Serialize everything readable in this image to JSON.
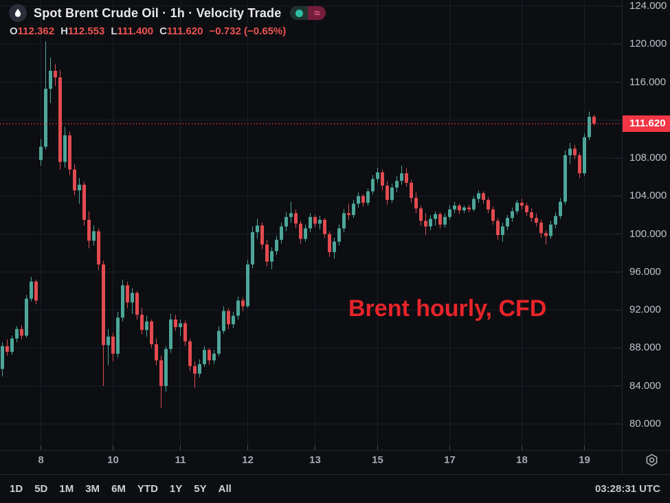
{
  "page": {
    "background": "#0c0e12"
  },
  "header": {
    "symbol_icon": "oil-drop-icon",
    "title": "Spot Brent Crude Oil · 1h · Velocity Trade",
    "toggle": {
      "dot_color": "#2fbfa4",
      "left_bg": "#20332f",
      "right_bg": "#761d3b",
      "right_symbol": "≈",
      "right_symbol_color": "#e8638f"
    },
    "ohlc": {
      "items": [
        {
          "label": "O",
          "value": "112.362"
        },
        {
          "label": "H",
          "value": "112.553"
        },
        {
          "label": "L",
          "value": "111.400"
        },
        {
          "label": "C",
          "value": "111.620"
        }
      ],
      "change": "−0.732 (−0.65%)",
      "value_color": "#ef5350"
    }
  },
  "annotation": {
    "text": "Brent hourly, CFD",
    "color": "#e8242a"
  },
  "toolbar": {
    "ranges": [
      "1D",
      "5D",
      "1M",
      "3M",
      "6M",
      "YTD",
      "1Y",
      "5Y",
      "All"
    ],
    "clock": "03:28:31 UTC"
  },
  "chart_data": {
    "type": "candlestick",
    "symbol": "Spot Brent Crude Oil",
    "interval": "1h",
    "provider": "Velocity Trade",
    "current_price": 111.62,
    "current_price_label": "111.620",
    "colors": {
      "up": "#4da699",
      "down": "#e24b50",
      "accent_red": "#f23645",
      "grid": "#1a1f28",
      "axis_tick": "#2b303a",
      "border": "#20252e",
      "time_tick": "#464b56"
    },
    "y_gridlines": [
      80,
      84,
      88,
      92,
      96,
      100,
      104,
      108,
      112,
      116,
      120,
      124
    ],
    "y_tick_labels": [
      {
        "price": 124,
        "label": "124.000"
      },
      {
        "price": 120,
        "label": "120.000"
      },
      {
        "price": 116,
        "label": "116.000"
      },
      {
        "price": 108,
        "label": "108.000"
      },
      {
        "price": 104,
        "label": "104.000"
      },
      {
        "price": 100,
        "label": "100.000"
      },
      {
        "price": 96,
        "label": "96.000"
      },
      {
        "price": 92,
        "label": "92.000"
      },
      {
        "price": 88,
        "label": "88.000"
      },
      {
        "price": 84,
        "label": "84.000"
      },
      {
        "price": 80,
        "label": "80.000"
      }
    ],
    "x_day_labels": [
      {
        "label": "8",
        "index": 8
      },
      {
        "label": "10",
        "index": 23
      },
      {
        "label": "11",
        "index": 37
      },
      {
        "label": "12",
        "index": 51
      },
      {
        "label": "13",
        "index": 65
      },
      {
        "label": "15",
        "index": 78
      },
      {
        "label": "17",
        "index": 93
      },
      {
        "label": "18",
        "index": 108
      },
      {
        "label": "19",
        "index": 121
      }
    ],
    "candles_format": [
      "open",
      "high",
      "low",
      "close"
    ],
    "candles": [
      [
        85.8,
        88.6,
        85.0,
        88.2
      ],
      [
        88.2,
        88.9,
        87.2,
        87.6
      ],
      [
        87.6,
        89.3,
        87.3,
        89.0
      ],
      [
        89.0,
        90.3,
        88.6,
        90.0
      ],
      [
        90.0,
        90.4,
        88.9,
        89.3
      ],
      [
        89.3,
        93.6,
        89.1,
        93.2
      ],
      [
        93.2,
        95.5,
        92.9,
        95.0
      ],
      [
        95.0,
        95.2,
        92.6,
        93.0
      ],
      [
        107.8,
        110.0,
        107.2,
        109.2
      ],
      [
        109.2,
        120.3,
        108.9,
        115.3
      ],
      [
        115.3,
        118.6,
        113.8,
        117.2
      ],
      [
        117.2,
        117.9,
        115.6,
        116.5
      ],
      [
        116.5,
        117.3,
        106.8,
        107.6
      ],
      [
        107.6,
        111.3,
        107.0,
        110.4
      ],
      [
        110.4,
        110.8,
        106.2,
        106.8
      ],
      [
        106.8,
        107.4,
        104.1,
        104.6
      ],
      [
        104.6,
        105.9,
        103.2,
        105.2
      ],
      [
        105.2,
        105.5,
        100.9,
        101.5
      ],
      [
        101.5,
        102.4,
        98.5,
        99.3
      ],
      [
        99.3,
        100.9,
        98.8,
        100.3
      ],
      [
        100.3,
        100.6,
        96.2,
        96.8
      ],
      [
        96.8,
        97.2,
        84.0,
        88.3
      ],
      [
        88.3,
        90.0,
        86.2,
        89.2
      ],
      [
        89.2,
        89.6,
        86.6,
        87.4
      ],
      [
        87.4,
        91.8,
        87.0,
        91.2
      ],
      [
        91.2,
        95.2,
        90.8,
        94.6
      ],
      [
        94.6,
        95.0,
        92.2,
        92.8
      ],
      [
        92.8,
        94.3,
        91.6,
        93.8
      ],
      [
        93.8,
        94.0,
        91.0,
        91.5
      ],
      [
        91.5,
        92.2,
        89.4,
        89.9
      ],
      [
        89.9,
        91.4,
        89.2,
        90.8
      ],
      [
        90.8,
        91.0,
        88.0,
        88.4
      ],
      [
        88.4,
        89.0,
        86.2,
        86.7
      ],
      [
        86.7,
        87.2,
        81.7,
        84.0
      ],
      [
        84.0,
        88.2,
        83.4,
        87.9
      ],
      [
        87.9,
        91.6,
        87.5,
        91.0
      ],
      [
        91.0,
        91.5,
        89.8,
        90.2
      ],
      [
        90.2,
        91.0,
        89.3,
        90.6
      ],
      [
        90.6,
        90.9,
        88.2,
        88.7
      ],
      [
        88.7,
        89.0,
        85.6,
        86.1
      ],
      [
        86.1,
        86.6,
        83.8,
        85.3
      ],
      [
        85.3,
        86.8,
        84.9,
        86.3
      ],
      [
        86.3,
        88.2,
        86.0,
        87.8
      ],
      [
        87.8,
        88.0,
        86.2,
        86.7
      ],
      [
        86.7,
        87.8,
        86.3,
        87.4
      ],
      [
        87.4,
        90.3,
        87.1,
        89.8
      ],
      [
        89.8,
        92.4,
        89.5,
        91.9
      ],
      [
        91.9,
        92.2,
        90.0,
        90.5
      ],
      [
        90.5,
        91.8,
        90.1,
        91.4
      ],
      [
        91.4,
        93.4,
        91.0,
        93.0
      ],
      [
        93.0,
        93.3,
        91.9,
        92.4
      ],
      [
        92.4,
        97.3,
        92.2,
        96.8
      ],
      [
        96.8,
        100.8,
        96.4,
        100.2
      ],
      [
        100.2,
        101.6,
        99.5,
        100.9
      ],
      [
        100.9,
        101.2,
        98.4,
        98.9
      ],
      [
        98.9,
        99.4,
        96.6,
        97.1
      ],
      [
        97.1,
        98.6,
        96.3,
        98.2
      ],
      [
        98.2,
        99.8,
        97.8,
        99.4
      ],
      [
        99.4,
        101.2,
        99.0,
        100.8
      ],
      [
        100.8,
        102.3,
        100.3,
        101.8
      ],
      [
        101.8,
        103.4,
        101.2,
        102.2
      ],
      [
        102.2,
        102.6,
        100.6,
        101.1
      ],
      [
        101.1,
        101.4,
        99.0,
        99.5
      ],
      [
        99.5,
        101.0,
        99.2,
        100.6
      ],
      [
        100.6,
        102.2,
        100.2,
        101.8
      ],
      [
        101.8,
        102.0,
        100.7,
        101.1
      ],
      [
        101.1,
        101.9,
        100.5,
        101.5
      ],
      [
        101.5,
        101.7,
        99.6,
        100.0
      ],
      [
        100.0,
        100.3,
        97.6,
        98.1
      ],
      [
        98.1,
        99.6,
        97.4,
        99.2
      ],
      [
        99.2,
        101.0,
        98.8,
        100.6
      ],
      [
        100.6,
        102.6,
        100.2,
        102.2
      ],
      [
        102.2,
        103.2,
        101.5,
        102.0
      ],
      [
        102.0,
        103.6,
        101.7,
        103.2
      ],
      [
        103.2,
        104.4,
        102.8,
        104.0
      ],
      [
        104.0,
        104.2,
        102.9,
        103.3
      ],
      [
        103.3,
        104.8,
        103.0,
        104.5
      ],
      [
        104.5,
        106.2,
        104.2,
        105.8
      ],
      [
        105.8,
        107.0,
        105.4,
        106.5
      ],
      [
        106.5,
        106.8,
        104.6,
        105.1
      ],
      [
        105.1,
        105.6,
        103.1,
        103.6
      ],
      [
        103.6,
        105.3,
        103.3,
        104.9
      ],
      [
        104.9,
        106.1,
        104.4,
        105.6
      ],
      [
        105.6,
        107.2,
        105.2,
        106.4
      ],
      [
        106.4,
        106.9,
        105.0,
        105.4
      ],
      [
        105.4,
        105.7,
        103.3,
        103.8
      ],
      [
        103.8,
        104.4,
        102.2,
        102.7
      ],
      [
        102.7,
        103.0,
        100.9,
        101.4
      ],
      [
        101.4,
        102.2,
        99.9,
        100.8
      ],
      [
        100.8,
        102.0,
        100.4,
        101.6
      ],
      [
        101.6,
        102.4,
        100.9,
        102.1
      ],
      [
        102.1,
        102.3,
        100.6,
        101.0
      ],
      [
        101.0,
        102.2,
        100.7,
        101.8
      ],
      [
        101.8,
        103.0,
        101.5,
        102.6
      ],
      [
        102.6,
        103.4,
        102.2,
        103.0
      ],
      [
        103.0,
        103.2,
        102.1,
        102.5
      ],
      [
        102.5,
        103.0,
        102.2,
        102.8
      ],
      [
        102.8,
        103.1,
        102.3,
        102.6
      ],
      [
        102.6,
        104.0,
        102.4,
        103.7
      ],
      [
        103.7,
        104.6,
        103.3,
        104.3
      ],
      [
        104.3,
        104.5,
        103.2,
        103.6
      ],
      [
        103.6,
        103.9,
        102.2,
        102.6
      ],
      [
        102.6,
        102.9,
        101.0,
        101.4
      ],
      [
        101.4,
        101.7,
        99.4,
        99.9
      ],
      [
        99.9,
        101.2,
        99.2,
        100.8
      ],
      [
        100.8,
        102.0,
        100.4,
        101.7
      ],
      [
        101.7,
        102.8,
        101.3,
        102.4
      ],
      [
        102.4,
        103.6,
        102.1,
        103.3
      ],
      [
        103.3,
        103.7,
        102.6,
        103.0
      ],
      [
        103.0,
        103.3,
        101.9,
        102.3
      ],
      [
        102.3,
        102.7,
        101.3,
        101.7
      ],
      [
        101.7,
        102.2,
        100.8,
        101.2
      ],
      [
        101.2,
        101.5,
        99.6,
        100.1
      ],
      [
        100.1,
        100.4,
        98.9,
        99.8
      ],
      [
        99.8,
        101.4,
        99.5,
        101.0
      ],
      [
        101.0,
        102.3,
        100.6,
        101.9
      ],
      [
        101.9,
        103.8,
        101.6,
        103.4
      ],
      [
        103.4,
        108.8,
        103.1,
        108.3
      ],
      [
        108.3,
        109.6,
        107.4,
        109.0
      ],
      [
        109.0,
        109.4,
        107.9,
        108.3
      ],
      [
        108.3,
        108.6,
        105.9,
        106.4
      ],
      [
        106.4,
        110.6,
        106.1,
        110.2
      ],
      [
        110.2,
        112.9,
        109.9,
        112.35
      ],
      [
        112.362,
        112.553,
        111.4,
        111.62
      ]
    ]
  }
}
